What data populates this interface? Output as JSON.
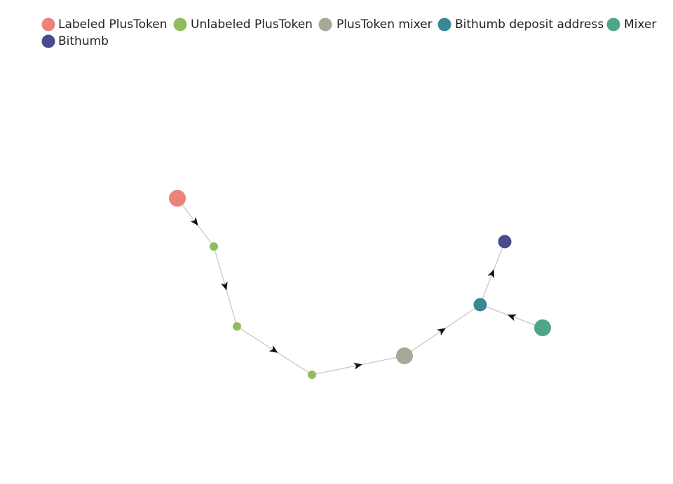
{
  "legend": [
    {
      "label": "Labeled PlusToken",
      "color": "#ec8378"
    },
    {
      "label": "Unlabeled PlusToken",
      "color": "#8fbd5e"
    },
    {
      "label": "PlusToken mixer",
      "color": "#a6a898"
    },
    {
      "label": "Bithumb deposit address",
      "color": "#3a8796"
    },
    {
      "label": "Mixer",
      "color": "#4fa586"
    },
    {
      "label": "Bithumb",
      "color": "#4a4a8e"
    }
  ]
}
